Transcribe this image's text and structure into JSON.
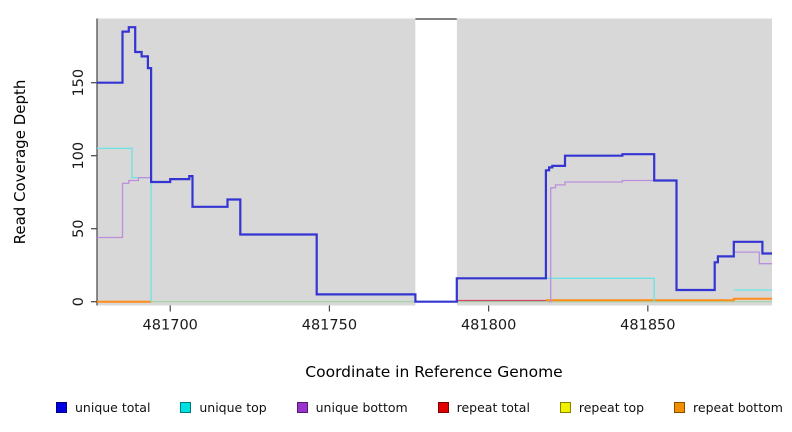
{
  "figure": {
    "y_axis_label": "Read Coverage Depth",
    "x_axis_label": "Coordinate in Reference Genome"
  },
  "chart_data": {
    "type": "line",
    "subtype": "step",
    "title": "",
    "xlabel": "Coordinate in Reference Genome",
    "ylabel": "Read Coverage Depth",
    "xlim": [
      481677,
      481889
    ],
    "ylim": [
      0,
      194
    ],
    "x_ticks": [
      481700,
      481750,
      481800,
      481850
    ],
    "y_ticks": [
      0,
      50,
      100,
      150
    ],
    "grid": false,
    "legend_position": "bottom",
    "panel_color": "#d8d8d8",
    "background_panels": [
      [
        481677,
        481777
      ],
      [
        481790,
        481889
      ]
    ],
    "gap": [
      481777,
      481790
    ],
    "gap_border_color": "#808080",
    "axis_color": "#444444",
    "tick_label_color": "#1a1a1a",
    "series": [
      {
        "name": "repeat top",
        "legend_index": 4,
        "legend_color": "#f0f000",
        "line_color": "#9fd49f",
        "line_width": 1.2,
        "z": 0,
        "segments": [
          [
            [
              481677,
              0
            ],
            [
              481889,
              0
            ]
          ]
        ]
      },
      {
        "name": "repeat bottom",
        "legend_index": 5,
        "legend_color": "#f09000",
        "line_color": "#ff8c1a",
        "line_width": 2,
        "z": 0,
        "segments": [
          [
            [
              481677,
              0
            ],
            [
              481694,
              0
            ]
          ],
          [
            [
              481818,
              1
            ],
            [
              481877,
              2
            ],
            [
              481889,
              2
            ]
          ]
        ]
      },
      {
        "name": "repeat total",
        "legend_index": 3,
        "legend_color": "#e00000",
        "line_color": "#d2486b",
        "line_width": 1.2,
        "z": 0,
        "segments": [
          [
            [
              481790,
              0.8
            ],
            [
              481818,
              0.8
            ]
          ]
        ]
      },
      {
        "name": "unique top",
        "legend_index": 1,
        "legend_color": "#00e0e0",
        "line_color": "#6ae4e4",
        "line_width": 1.3,
        "z": 0,
        "segments": [
          [
            [
              481677,
              105
            ],
            [
              481688,
              85
            ],
            [
              481694,
              0
            ]
          ],
          [
            [
              481790,
              16
            ],
            [
              481852,
              0
            ]
          ],
          [
            [
              481877,
              8
            ],
            [
              481889,
              8
            ]
          ]
        ]
      },
      {
        "name": "unique bottom",
        "legend_index": 2,
        "legend_color": "#9933cc",
        "line_color": "#bb8fdc",
        "line_width": 1.3,
        "z": 0,
        "segments": [
          [
            [
              481677,
              44
            ],
            [
              481685,
              81
            ],
            [
              481687,
              83
            ],
            [
              481690,
              85
            ],
            [
              481694,
              82
            ],
            [
              481700,
              84
            ],
            [
              481706,
              86
            ],
            [
              481707,
              65
            ],
            [
              481718,
              70
            ],
            [
              481722,
              46
            ],
            [
              481746,
              5
            ],
            [
              481777,
              0
            ]
          ],
          [
            [
              481819,
              0
            ],
            [
              481819.5,
              78
            ],
            [
              481821,
              80
            ],
            [
              481824,
              82
            ],
            [
              481842,
              83
            ],
            [
              481852,
              83
            ],
            [
              481859,
              8
            ],
            [
              481871,
              27
            ],
            [
              481872,
              31
            ],
            [
              481877,
              34
            ],
            [
              481885,
              26
            ],
            [
              481889,
              26
            ]
          ]
        ]
      },
      {
        "name": "unique total",
        "legend_index": 0,
        "legend_color": "#0000e0",
        "line_color": "#3434d2",
        "line_width": 2.2,
        "z": 1,
        "segments": [
          [
            [
              481677,
              150
            ],
            [
              481685,
              185
            ],
            [
              481687,
              188
            ],
            [
              481689,
              171
            ],
            [
              481691,
              168
            ],
            [
              481693,
              160
            ],
            [
              481694,
              82
            ],
            [
              481700,
              84
            ],
            [
              481706,
              86
            ],
            [
              481707,
              65
            ],
            [
              481718,
              70
            ],
            [
              481722,
              46
            ],
            [
              481746,
              5
            ],
            [
              481777,
              0
            ],
            [
              481790,
              16
            ],
            [
              481818,
              90
            ],
            [
              481819,
              92
            ],
            [
              481820,
              93
            ],
            [
              481824,
              100
            ],
            [
              481842,
              101
            ],
            [
              481852,
              83
            ],
            [
              481859,
              8
            ],
            [
              481871,
              27
            ],
            [
              481872,
              31
            ],
            [
              481877,
              41
            ],
            [
              481886,
              33
            ],
            [
              481889,
              33
            ]
          ]
        ]
      }
    ]
  }
}
